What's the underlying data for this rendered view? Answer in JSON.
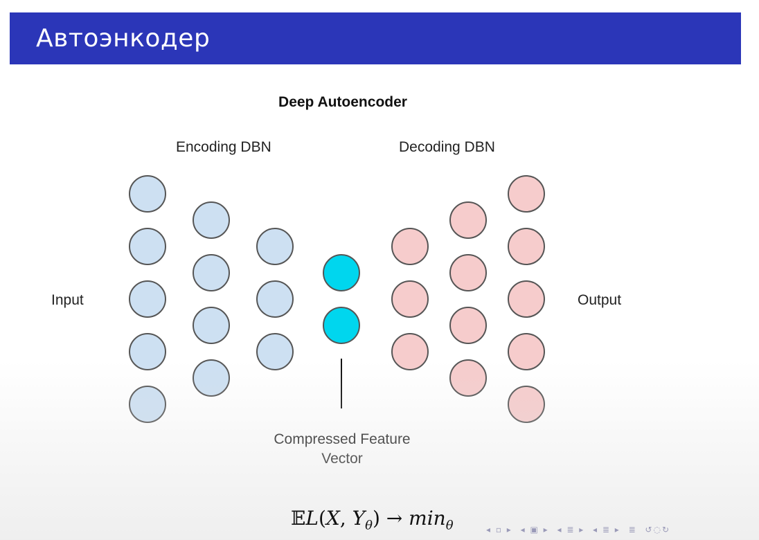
{
  "slide": {
    "title": "Автоэнкодер"
  },
  "diagram": {
    "title": "Deep Autoencoder",
    "encoding_label": "Encoding DBN",
    "decoding_label": "Decoding DBN",
    "input_label": "Input",
    "output_label": "Output",
    "compressed_label": "Compressed Feature Vector",
    "layers": {
      "encoder": [
        5,
        4,
        3
      ],
      "bottleneck": 2,
      "decoder": [
        3,
        4,
        5
      ]
    },
    "colors": {
      "encoder_fill": "#cde0f2",
      "bottleneck_fill": "#00d6ee",
      "decoder_fill": "#f6cccc",
      "node_stroke": "#555555"
    }
  },
  "formula": {
    "expectation": "𝔼",
    "loss": "L",
    "open": "(",
    "x": "X",
    "comma": ", ",
    "y": "Y",
    "theta_sub": "θ",
    "close": ")",
    "arrow": " → ",
    "min": "min",
    "min_sub": "θ"
  },
  "navigation": {
    "icons": [
      "nav-prev-icon",
      "nav-frame-icon",
      "nav-section-icon",
      "nav-subsection-icon",
      "nav-list-icon",
      "nav-search-icon"
    ]
  }
}
